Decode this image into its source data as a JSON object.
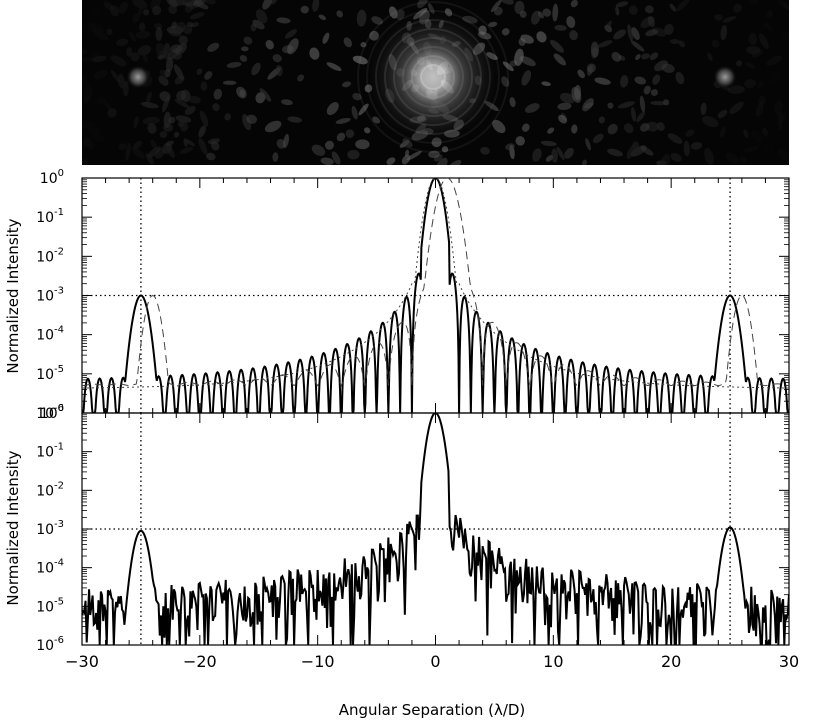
{
  "chart_data": [
    {
      "type": "image",
      "description_ok": false,
      "sources": [
        {
          "x": 0,
          "peak": 1.0
        },
        {
          "x": -25,
          "peak": 0.18
        },
        {
          "x": 25,
          "peak": 0.18
        }
      ],
      "colormap": "grayscale"
    },
    {
      "type": "line",
      "xlabel": "",
      "ylabel": "Normalized Intensity",
      "xlim": [
        -30,
        30
      ],
      "ylim": [
        1e-06,
        1
      ],
      "yscale": "log",
      "yticks": [
        "10^0",
        "10^-1",
        "10^-2",
        "10^-3",
        "10^-4",
        "10^-5",
        "10^-6"
      ],
      "reference_lines": {
        "vertical": [
          -25,
          25
        ],
        "horizontal": [
          0.001
        ]
      },
      "series": [
        {
          "style": "solid",
          "peaks": [
            {
              "x": 0,
              "y": 1.0
            },
            {
              "x": -25,
              "y": 0.001
            },
            {
              "x": 25,
              "y": 0.001
            }
          ],
          "envelope": [
            [
              -20,
              8e-06
            ],
            [
              -15,
              1.5e-05
            ],
            [
              -10,
              4e-05
            ],
            [
              -5,
              0.00015
            ],
            [
              -2,
              0.001
            ],
            [
              2,
              0.002
            ],
            [
              5,
              0.00015
            ],
            [
              10,
              4e-05
            ],
            [
              15,
              1.5e-05
            ],
            [
              20,
              8e-06
            ]
          ]
        },
        {
          "style": "dashed",
          "peaks": [
            {
              "x": 1,
              "y": 1.0
            },
            {
              "x": -24,
              "y": 0.001
            },
            {
              "x": 26,
              "y": 0.001
            }
          ]
        },
        {
          "style": "dotted",
          "peaks": [
            {
              "x": 0,
              "y": 1.0
            }
          ]
        }
      ]
    },
    {
      "type": "line",
      "xlabel": "Angular Separation (λ/D)",
      "ylabel": "Normalized Intensity",
      "xlim": [
        -30,
        30
      ],
      "ylim": [
        1e-06,
        1
      ],
      "yscale": "log",
      "xticks": [
        "−30",
        "−20",
        "−10",
        "0",
        "10",
        "20",
        "30"
      ],
      "yticks": [
        "10^0",
        "10^-1",
        "10^-2",
        "10^-3",
        "10^-4",
        "10^-5",
        "10^-6"
      ],
      "reference_lines": {
        "vertical": [
          -25,
          25
        ],
        "horizontal": [
          0.001
        ]
      },
      "series": [
        {
          "style": "solid",
          "peaks": [
            {
              "x": 0,
              "y": 1.0
            },
            {
              "x": -25,
              "y": 0.0009
            },
            {
              "x": 25,
              "y": 0.0011
            }
          ],
          "notable": [
            [
              -8,
              0.0002
            ],
            [
              -4,
              0.0008
            ],
            [
              -2,
              0.002
            ],
            [
              2,
              0.002
            ],
            [
              4,
              0.0008
            ],
            [
              8,
              0.0002
            ],
            [
              -17,
              0.0001
            ],
            [
              17,
              0.0001
            ]
          ]
        }
      ]
    }
  ],
  "labels": {
    "ylabel_top": "Normalized Intensity",
    "ylabel_bottom": "Normalized Intensity",
    "xlabel": "Angular Separation (λ/D)",
    "xticks": [
      "−30",
      "−20",
      "−10",
      "0",
      "10",
      "20",
      "30"
    ]
  }
}
